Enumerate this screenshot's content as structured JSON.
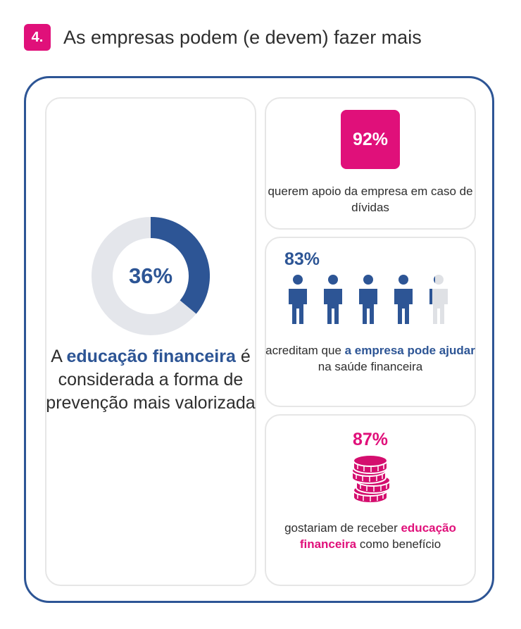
{
  "header": {
    "number": "4.",
    "title": "As empresas podem (e devem) fazer mais"
  },
  "colors": {
    "accent_pink": "#e0107a",
    "accent_blue": "#2d5595",
    "track_gray": "#e4e6eb",
    "person_gray": "#dfe1e5"
  },
  "left_card": {
    "text_pre": "A ",
    "highlight": "educação financeira",
    "text_post": " é considerada a forma de prevenção mais valorizada"
  },
  "card_debt": {
    "text": "querem apoio da empresa em caso de dívidas"
  },
  "card_health": {
    "text_pre": "acreditam que ",
    "highlight": "a empresa pode ajudar",
    "text_post": " na saúde financeira",
    "icon": "person-icon"
  },
  "card_benefit": {
    "text_pre": "gostariam de receber ",
    "highlight": "educação financeira",
    "text_post": " como benefício",
    "icon": "coins-stack-icon"
  },
  "chart_data": [
    {
      "type": "pie",
      "variant": "donut",
      "values": [
        36,
        64
      ],
      "value_label": "36%"
    },
    {
      "type": "bar",
      "value": 92,
      "value_label": "92%"
    },
    {
      "type": "bar",
      "variant": "pictogram",
      "value": 83,
      "value_label": "83%",
      "icons_total": 5
    },
    {
      "type": "bar",
      "value": 87,
      "value_label": "87%"
    }
  ]
}
